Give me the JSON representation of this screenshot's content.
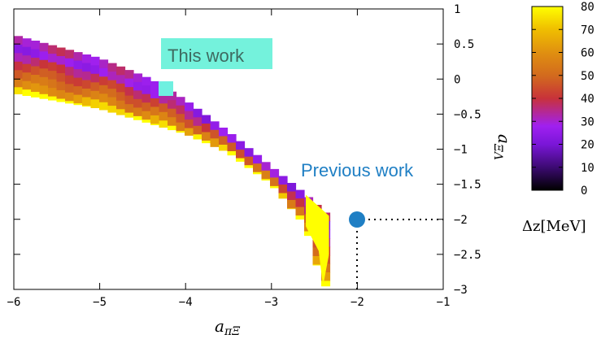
{
  "chart_data": {
    "type": "heatmap",
    "xlabel": "a_{πΞ}",
    "ylabel": "a_{ΞΛ}",
    "xlim": [
      -6,
      -1
    ],
    "ylim": [
      -3,
      1
    ],
    "x_ticks": [
      "−6",
      "−5",
      "−4",
      "−3",
      "−2",
      "−1"
    ],
    "y_ticks": [
      "1",
      "0.5",
      "0",
      "−0.5",
      "−1",
      "−1.5",
      "−2",
      "−2.5",
      "−3"
    ],
    "grid": false,
    "colorbar": {
      "label": "Δz[MeV]",
      "range": [
        0,
        80
      ],
      "ticks": [
        "0",
        "10",
        "20",
        "30",
        "40",
        "50",
        "60",
        "70",
        "80"
      ],
      "colors": [
        "#000000",
        "#3a0a6e",
        "#7a16d8",
        "#a020f0",
        "#c8323a",
        "#d2691e",
        "#e09010",
        "#f0c000",
        "#ffff00"
      ]
    },
    "band": {
      "description_points_upper": [
        [
          -6,
          0.63
        ],
        [
          -5,
          0.3
        ],
        [
          -4.4,
          0.0
        ],
        [
          -4,
          -0.3
        ],
        [
          -3.5,
          -0.75
        ],
        [
          -3,
          -1.25
        ],
        [
          -2.6,
          -1.65
        ],
        [
          -2.33,
          -1.95
        ]
      ],
      "description_points_lower": [
        [
          -6,
          -0.2
        ],
        [
          -5,
          -0.42
        ],
        [
          -4,
          -0.78
        ],
        [
          -3.5,
          -1.05
        ],
        [
          -3,
          -1.5
        ],
        [
          -2.6,
          -2.1
        ],
        [
          -2.4,
          -2.95
        ]
      ]
    },
    "annotations": [
      {
        "text": "This work",
        "x": -4.25,
        "y": -0.15,
        "marker": "square",
        "color": "#6ff0e0"
      },
      {
        "text": "Previous work",
        "x": -2,
        "y": -2,
        "marker": "circle",
        "color": "#1f7fc4"
      }
    ]
  }
}
